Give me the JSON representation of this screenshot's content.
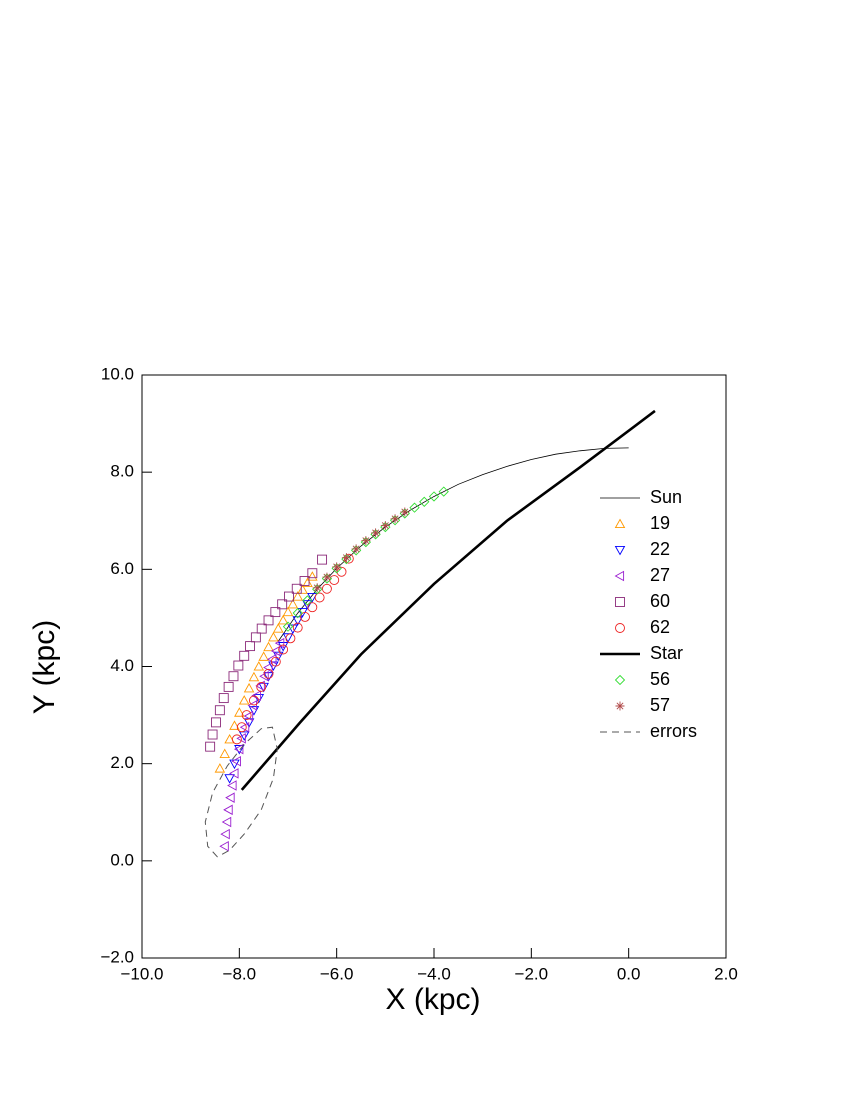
{
  "chart_data": {
    "type": "scatter",
    "xlabel": "X (kpc)",
    "ylabel": "Y (kpc)",
    "xlim": [
      -10,
      2
    ],
    "ylim": [
      -2,
      10
    ],
    "xticks": [
      {
        "value": -10,
        "label": "−10.0"
      },
      {
        "value": -8,
        "label": "−8.0"
      },
      {
        "value": -6,
        "label": "−6.0"
      },
      {
        "value": -4,
        "label": "−4.0"
      },
      {
        "value": -2,
        "label": "−2.0"
      },
      {
        "value": 0,
        "label": "0.0"
      },
      {
        "value": 2,
        "label": "2.0"
      }
    ],
    "yticks": [
      {
        "value": -2,
        "label": "−2.0"
      },
      {
        "value": 0,
        "label": "0.0"
      },
      {
        "value": 2,
        "label": "2.0"
      },
      {
        "value": 4,
        "label": "4.0"
      },
      {
        "value": 6,
        "label": "6.0"
      },
      {
        "value": 8,
        "label": "8.0"
      },
      {
        "value": 10,
        "label": "10.0"
      }
    ],
    "legend": "right",
    "series": [
      {
        "name": "Sun",
        "color": "#000000",
        "style": "line",
        "line_width": 0.8,
        "x": [
          -7.2,
          -6.8,
          -6.4,
          -6.0,
          -5.5,
          -5.0,
          -4.5,
          -4.0,
          -3.5,
          -3.0,
          -2.5,
          -2.0,
          -1.5,
          -1.0,
          -0.5,
          0.0
        ],
        "y": [
          4.52,
          5.1,
          5.59,
          6.02,
          6.48,
          6.87,
          7.21,
          7.5,
          7.75,
          7.95,
          8.12,
          8.26,
          8.37,
          8.44,
          8.49,
          8.5
        ]
      },
      {
        "name": "19",
        "color": "#ff9900",
        "style": "marker",
        "marker": "triangle-up",
        "x": [
          -8.4,
          -8.3,
          -8.2,
          -8.1,
          -8.0,
          -7.9,
          -7.8,
          -7.7,
          -7.6,
          -7.5,
          -7.4,
          -7.3,
          -7.2,
          -7.1,
          -7.0,
          -6.9,
          -6.8,
          -6.7,
          -6.6,
          -6.5
        ],
        "y": [
          1.9,
          2.2,
          2.5,
          2.78,
          3.05,
          3.3,
          3.55,
          3.78,
          4.0,
          4.2,
          4.4,
          4.6,
          4.78,
          4.95,
          5.12,
          5.28,
          5.44,
          5.58,
          5.72,
          5.85
        ]
      },
      {
        "name": "22",
        "color": "#0000ff",
        "style": "marker",
        "marker": "triangle-down",
        "x": [
          -8.2,
          -8.1,
          -8.0,
          -7.9,
          -7.8,
          -7.7,
          -7.6,
          -7.5,
          -7.4,
          -7.3,
          -7.2,
          -7.1,
          -7.0,
          -6.9,
          -6.8,
          -6.7,
          -6.6,
          -6.5
        ],
        "y": [
          1.7,
          2.0,
          2.3,
          2.58,
          2.85,
          3.1,
          3.35,
          3.58,
          3.8,
          4.02,
          4.22,
          4.42,
          4.6,
          4.78,
          4.95,
          5.12,
          5.28,
          5.43
        ]
      },
      {
        "name": "27",
        "color": "#9a1ed0",
        "style": "marker",
        "marker": "triangle-left",
        "x": [
          -8.3,
          -8.28,
          -8.25,
          -8.22,
          -8.18,
          -8.14,
          -8.1,
          -8.05,
          -8.0,
          -7.95,
          -7.88,
          -7.8,
          -7.72,
          -7.64,
          -7.56,
          -7.48,
          -7.4,
          -7.32,
          -7.24,
          -7.16
        ],
        "y": [
          0.3,
          0.55,
          0.8,
          1.05,
          1.3,
          1.55,
          1.8,
          2.05,
          2.3,
          2.52,
          2.75,
          2.98,
          3.2,
          3.4,
          3.6,
          3.8,
          3.98,
          4.15,
          4.32,
          4.48
        ]
      },
      {
        "name": "60",
        "color": "#8b2a7a",
        "style": "marker",
        "marker": "square",
        "x": [
          -8.6,
          -8.55,
          -8.48,
          -8.4,
          -8.32,
          -8.22,
          -8.12,
          -8.02,
          -7.9,
          -7.78,
          -7.66,
          -7.54,
          -7.4,
          -7.26,
          -7.12,
          -6.98,
          -6.82,
          -6.66,
          -6.5,
          -6.3
        ],
        "y": [
          2.35,
          2.6,
          2.85,
          3.1,
          3.35,
          3.58,
          3.8,
          4.02,
          4.22,
          4.42,
          4.6,
          4.78,
          4.95,
          5.12,
          5.28,
          5.44,
          5.6,
          5.76,
          5.92,
          6.2
        ]
      },
      {
        "name": "62",
        "color": "#ee2222",
        "style": "marker",
        "marker": "circle",
        "x": [
          -8.05,
          -7.95,
          -7.85,
          -7.7,
          -7.55,
          -7.4,
          -7.25,
          -7.1,
          -6.95,
          -6.8,
          -6.65,
          -6.5,
          -6.35,
          -6.2,
          -6.05,
          -5.9,
          -5.75
        ],
        "y": [
          2.5,
          2.75,
          3.0,
          3.3,
          3.58,
          3.85,
          4.1,
          4.35,
          4.58,
          4.8,
          5.02,
          5.22,
          5.42,
          5.6,
          5.78,
          5.95,
          6.22
        ]
      },
      {
        "name": "Star",
        "color": "#000000",
        "style": "line",
        "line_width": 2.6,
        "x": [
          -7.95,
          -6.75,
          -5.5,
          -4.0,
          -2.5,
          -1.0,
          0.54
        ],
        "y": [
          1.46,
          2.85,
          4.25,
          5.7,
          7.0,
          8.1,
          9.26
        ]
      },
      {
        "name": "56",
        "color": "#33dd33",
        "style": "marker",
        "marker": "diamond",
        "x": [
          -7.0,
          -6.8,
          -6.6,
          -6.4,
          -6.2,
          -6.0,
          -5.8,
          -5.6,
          -5.4,
          -5.2,
          -5.0,
          -4.8,
          -4.6,
          -4.4,
          -4.2,
          -4.0,
          -3.8
        ],
        "y": [
          4.82,
          5.1,
          5.36,
          5.59,
          5.81,
          6.02,
          6.21,
          6.39,
          6.56,
          6.72,
          6.87,
          7.01,
          7.15,
          7.27,
          7.39,
          7.5,
          7.6
        ]
      },
      {
        "name": "57",
        "color": "#b04848",
        "style": "marker",
        "marker": "star",
        "x": [
          -6.4,
          -6.2,
          -6.0,
          -5.8,
          -5.6,
          -5.4,
          -5.2,
          -5.0,
          -4.8,
          -4.6
        ],
        "y": [
          5.62,
          5.84,
          6.05,
          6.24,
          6.42,
          6.59,
          6.75,
          6.9,
          7.04,
          7.18
        ]
      },
      {
        "name": "errors",
        "color": "#555555",
        "style": "dashed",
        "line_width": 1,
        "x": [
          -8.45,
          -8.65,
          -8.7,
          -8.55,
          -8.25,
          -7.9,
          -7.55,
          -7.32,
          -7.22,
          -7.3,
          -7.55,
          -7.9,
          -8.2,
          -8.45
        ],
        "y": [
          0.08,
          0.3,
          0.8,
          1.4,
          1.95,
          2.4,
          2.72,
          2.75,
          2.3,
          1.7,
          1.05,
          0.55,
          0.22,
          0.08
        ]
      }
    ]
  }
}
